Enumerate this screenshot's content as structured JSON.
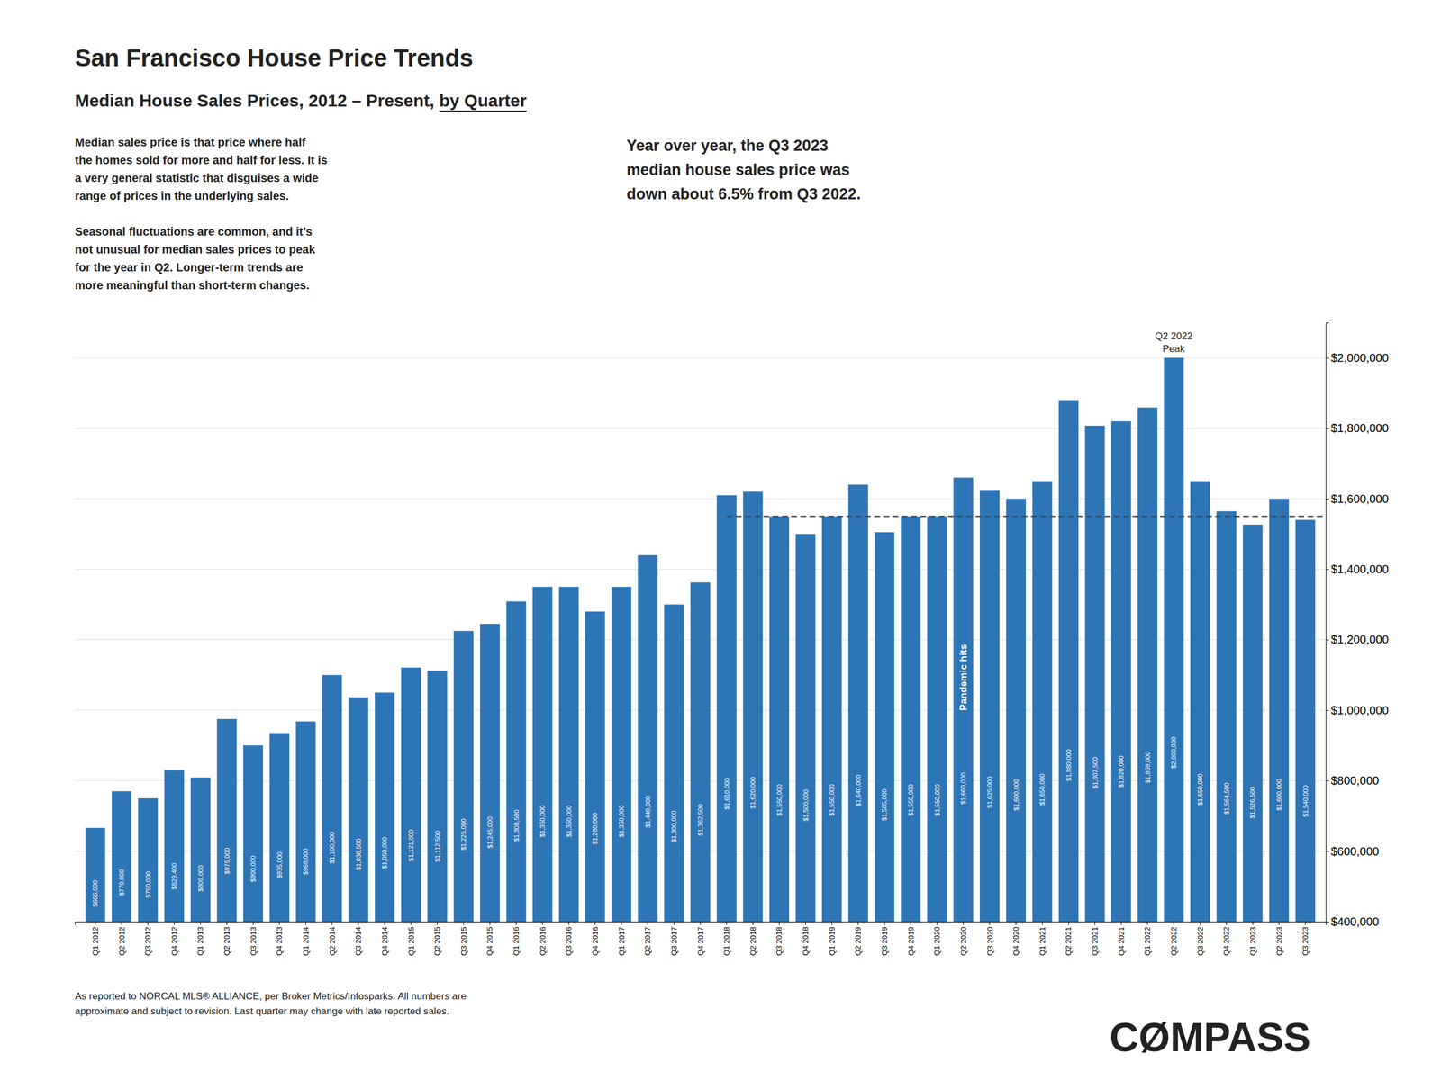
{
  "chart_data": {
    "type": "bar",
    "title": "San Francisco House Price Trends",
    "subtitle": "Median House Sales Prices, 2012 – Present, ",
    "subtitle_emphasis": "by Quarter",
    "notes": [
      "Median sales price is that price where half\nthe homes sold for more and half for less. It is\na very general statistic that disguises a wide\nrange of prices in the underlying sales.\n\nSeasonal fluctuations are common, and it’s\nnot unusual for median sales prices to peak\nfor the year in Q2. Longer-term trends are\nmore meaningful than short-term changes.",
      "Year over year, the Q3 2023\nmedian house sales price was\ndown about 6.5% from Q3 2022."
    ],
    "footer": "As reported to NORCAL MLS® ALLIANCE, per Broker Metrics/Infosparks. All numbers are\napproximate and subject to revision. Last quarter may change with late reported sales.",
    "brand": "CØMPASS",
    "categories": [
      "Q1 2012",
      "Q2 2012",
      "Q3 2012",
      "Q4 2012",
      "Q1 2013",
      "Q2 2013",
      "Q3 2013",
      "Q4 2013",
      "Q1 2014",
      "Q2 2014",
      "Q3 2014",
      "Q4 2014",
      "Q1 2015",
      "Q2 2015",
      "Q3 2015",
      "Q4 2015",
      "Q1 2016",
      "Q2 2016",
      "Q3 2016",
      "Q4 2016",
      "Q1 2017",
      "Q2 2017",
      "Q3 2017",
      "Q4 2017",
      "Q1 2018",
      "Q2 2018",
      "Q3 2018",
      "Q4 2018",
      "Q1 2019",
      "Q2 2019",
      "Q3 2019",
      "Q4 2019",
      "Q1 2020",
      "Q2 2020",
      "Q3 2020",
      "Q4 2020",
      "Q1 2021",
      "Q2 2021",
      "Q3 2021",
      "Q4 2021",
      "Q1 2022",
      "Q2 2022",
      "Q3 2022",
      "Q4 2022",
      "Q1 2023",
      "Q2 2023",
      "Q3 2023"
    ],
    "values": [
      666000,
      770000,
      750000,
      829400,
      809000,
      975000,
      900000,
      935000,
      968000,
      1100000,
      1036500,
      1050000,
      1121000,
      1112500,
      1225000,
      1245000,
      1308500,
      1350000,
      1350000,
      1280000,
      1350000,
      1440000,
      1300000,
      1362500,
      1610000,
      1620000,
      1550000,
      1500000,
      1550000,
      1640000,
      1505000,
      1550000,
      1550000,
      1660000,
      1625000,
      1600000,
      1650000,
      1880000,
      1807500,
      1820000,
      1859000,
      2000000,
      1650000,
      1564500,
      1526500,
      1600000,
      1540000
    ],
    "value_labels": [
      "$666,000",
      "$770,000",
      "$750,000",
      "$829,400",
      "$809,000",
      "$975,000",
      "$900,000",
      "$935,000",
      "$968,000",
      "$1,100,000",
      "$1,036,500",
      "$1,050,000",
      "$1,121,000",
      "$1,112,500",
      "$1,225,000",
      "$1,245,000",
      "$1,308,500",
      "$1,350,000",
      "$1,350,000",
      "$1,280,000",
      "$1,350,000",
      "$1,440,000",
      "$1,300,000",
      "$1,362,500",
      "$1,610,000",
      "$1,620,000",
      "$1,550,000",
      "$1,500,000",
      "$1,550,000",
      "$1,640,000",
      "$1,505,000",
      "$1,550,000",
      "$1,550,000",
      "$1,660,000",
      "$1,625,000",
      "$1,600,000",
      "$1,650,000",
      "$1,880,000",
      "$1,807,500",
      "$1,820,000",
      "$1,859,000",
      "$2,000,000",
      "$1,650,000",
      "$1,564,500",
      "$1,526,500",
      "$1,600,000",
      "$1,540,000"
    ],
    "data_labels": true,
    "color": "#2e75b6",
    "ylim": [
      400000,
      2100000
    ],
    "yticks": [
      {
        "value": 400000,
        "label": "$400,000"
      },
      {
        "value": 600000,
        "label": "$600,000"
      },
      {
        "value": 800000,
        "label": "$800,000"
      },
      {
        "value": 1000000,
        "label": "$1,000,000"
      },
      {
        "value": 1200000,
        "label": "$1,200,000"
      },
      {
        "value": 1400000,
        "label": "$1,400,000"
      },
      {
        "value": 1600000,
        "label": "$1,600,000"
      },
      {
        "value": 1800000,
        "label": "$1,800,000"
      },
      {
        "value": 2000000,
        "label": "$2,000,000"
      }
    ],
    "grid": true,
    "reference_line": {
      "y": 1550000,
      "x_start": "Q1 2018",
      "line_style": "dashed"
    },
    "annotations": [
      {
        "text": "Pandemic hits",
        "x": "Q2 2020"
      },
      {
        "text": "Q2 2022\nPeak",
        "x": "Q2 2022"
      }
    ]
  }
}
